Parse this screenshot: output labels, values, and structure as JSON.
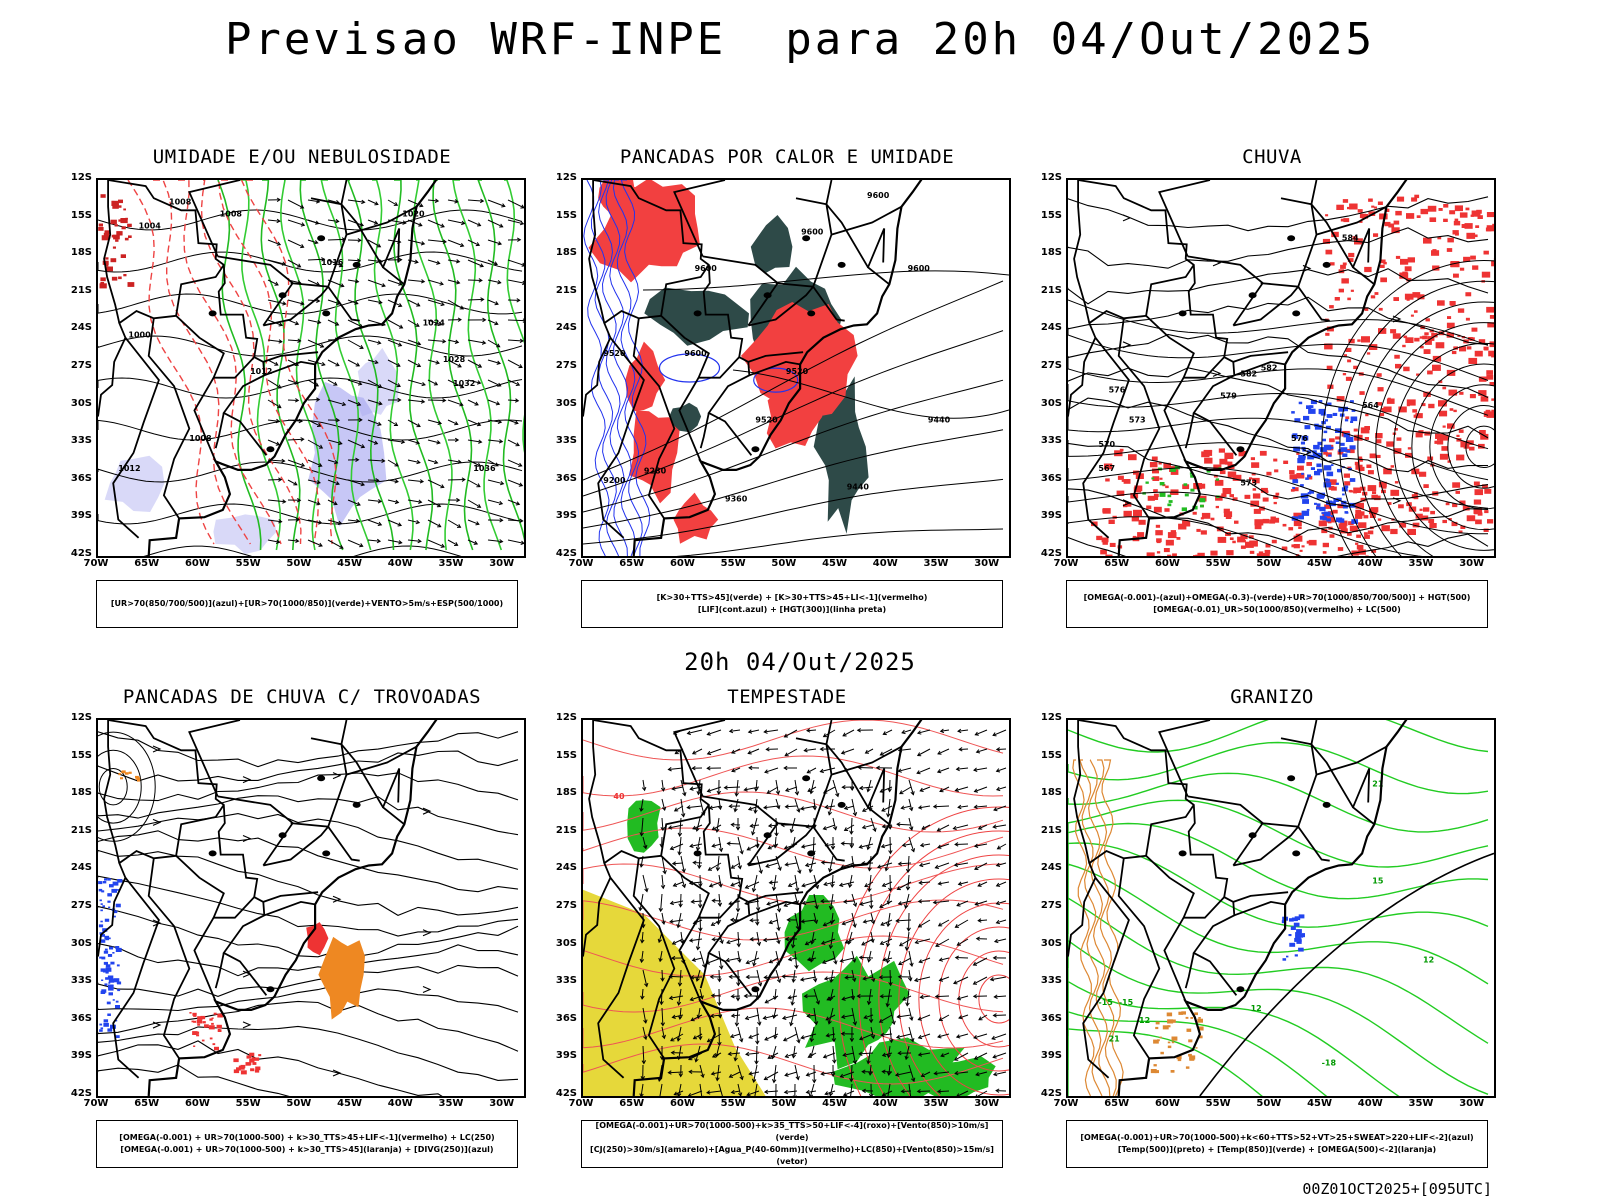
{
  "page": {
    "main_title": "Previsao WRF-INPE  para 20h 04/Out/2025",
    "mid_title": "20h 04/Out/2025",
    "footer": "00Z01OCT2025+[095UTC]"
  },
  "axes": {
    "lat_labels": [
      "12S",
      "15S",
      "18S",
      "21S",
      "24S",
      "27S",
      "30S",
      "33S",
      "36S",
      "39S",
      "42S"
    ],
    "lon_labels": [
      "70W",
      "65W",
      "60W",
      "55W",
      "50W",
      "45W",
      "40W",
      "35W",
      "30W"
    ]
  },
  "panels": [
    {
      "title": "UMIDADE E/OU NEBULOSIDADE",
      "legend": [
        "[UR>70(850/700/500)](azul)+[UR>70(1000/850)](verde)+VENTO>5m/s+ESP(500/1000)"
      ],
      "style": "umidade",
      "contour_labels": [
        "1004",
        "1008",
        "1008",
        "1012",
        "1016",
        "1020",
        "1024",
        "1028",
        "1032",
        "1036",
        "1008",
        "1012",
        "1000"
      ]
    },
    {
      "title": "PANCADAS POR CALOR E UMIDADE",
      "legend": [
        "[K>30+TTS>45](verde) + [K>30+TTS>45+LI<-1](vermelho)",
        "[LIF](cont.azul) + [HGT(300)](linha preta)"
      ],
      "style": "pancadas_calor",
      "contour_labels": [
        "9600",
        "9600",
        "9600",
        "9600",
        "9600",
        "9520",
        "9520",
        "9440",
        "9440",
        "9360",
        "9280",
        "9200",
        "9520"
      ]
    },
    {
      "title": "CHUVA",
      "legend": [
        "[OMEGA(-0.001)-(azul)+OMEGA(-0.3)-(verde)+UR>70(1000/850/700/500)] + HGT(500)",
        "[OMEGA(-0.01)_UR>50(1000/850)(vermelho) + LC(500)"
      ],
      "style": "chuva",
      "contour_labels": [
        "582",
        "579",
        "576",
        "573",
        "570",
        "567",
        "564",
        "582",
        "584",
        "573",
        "576"
      ]
    },
    {
      "title": "PANCADAS DE CHUVA C/ TROVOADAS",
      "legend": [
        "[OMEGA(-0.001) + UR>70(1000-500) + k>30_TTS>45+LIF<-1](vermelho) + LC(250)",
        "[OMEGA(-0.001) + UR>70(1000-500) + k>30_TTS>45](laranja) + [DIVG(250)](azul)"
      ],
      "style": "trovoadas",
      "contour_labels": []
    },
    {
      "title": "TEMPESTADE",
      "legend": [
        "[OMEGA(-0.001)+UR>70(1000-500)+k>35_TTS>50+LIF<-4](roxo)+[Vento(850)>10m/s](verde)",
        "[CJ(250)>30m/s](amarelo)+[Agua_P(40-60mm)](vermelho)+LC(850)+[Vento(850)>15m/s](vetor)"
      ],
      "style": "tempestade",
      "contour_labels": [
        "40"
      ]
    },
    {
      "title": "GRANIZO",
      "legend": [
        "[OMEGA(-0.001)+UR>70(1000-500)+k<60+TTS>52+VT>25+SWEAT>220+LIF<-2](azul)",
        "[Temp(500)](preto) + [Temp(850)](verde) + [OMEGA(500)<-2](laranja)"
      ],
      "style": "granizo",
      "contour_labels": [
        "21",
        "15",
        "12",
        "12",
        "12",
        "-18",
        "-15",
        "21",
        "-15"
      ]
    }
  ]
}
